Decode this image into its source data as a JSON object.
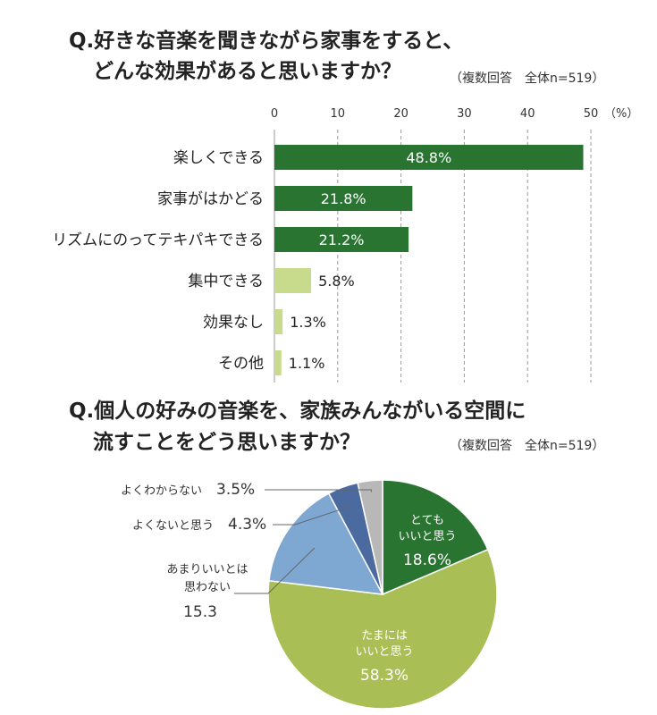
{
  "q1": {
    "title_line1": "Q.好きな音楽を聞きながら家事をすると、",
    "title_line2": "どんな効果があると思いますか？",
    "note": "（複数回答　全体n=519）",
    "unit": "（%）"
  },
  "q2": {
    "title_line1": "Q.個人の好みの音楽を、家族みんながいる空間に",
    "title_line2": "流すことをどう思いますか？",
    "note": "（複数回答　全体n=519）"
  },
  "chart_data": [
    {
      "type": "bar",
      "orientation": "horizontal",
      "categories": [
        "楽しくできる",
        "家事がはかどる",
        "リズムにのってテキパキできる",
        "集中できる",
        "効果なし",
        "その他"
      ],
      "values": [
        48.8,
        21.8,
        21.2,
        5.8,
        1.3,
        1.1
      ],
      "value_labels": [
        "48.8%",
        "21.8%",
        "21.2%",
        "5.8%",
        "1.3%",
        "1.1%"
      ],
      "xlim": [
        0,
        50
      ],
      "ticks": [
        0,
        10,
        20,
        30,
        40,
        50
      ],
      "grid": "vertical dashed",
      "colors": [
        "#2a7432",
        "#2a7432",
        "#2a7432",
        "#c8db8c",
        "#c8db8c",
        "#c8db8c"
      ]
    },
    {
      "type": "pie",
      "slices": [
        {
          "label": "とても\nいいと思う",
          "value": 18.6,
          "value_label": "18.6%",
          "color": "#2a7432"
        },
        {
          "label": "たまには\nいいと思う",
          "value": 58.3,
          "value_label": "58.3%",
          "color": "#a9bf55"
        },
        {
          "label": "あまりいいとは\n思わない",
          "value": 15.3,
          "value_label": "15.3",
          "color": "#7ea7d2"
        },
        {
          "label": "よくないと思う",
          "value": 4.3,
          "value_label": "4.3%",
          "color": "#4a6aa0"
        },
        {
          "label": "よくわからない",
          "value": 3.5,
          "value_label": "3.5%",
          "color": "#b8b8b8"
        }
      ]
    }
  ]
}
